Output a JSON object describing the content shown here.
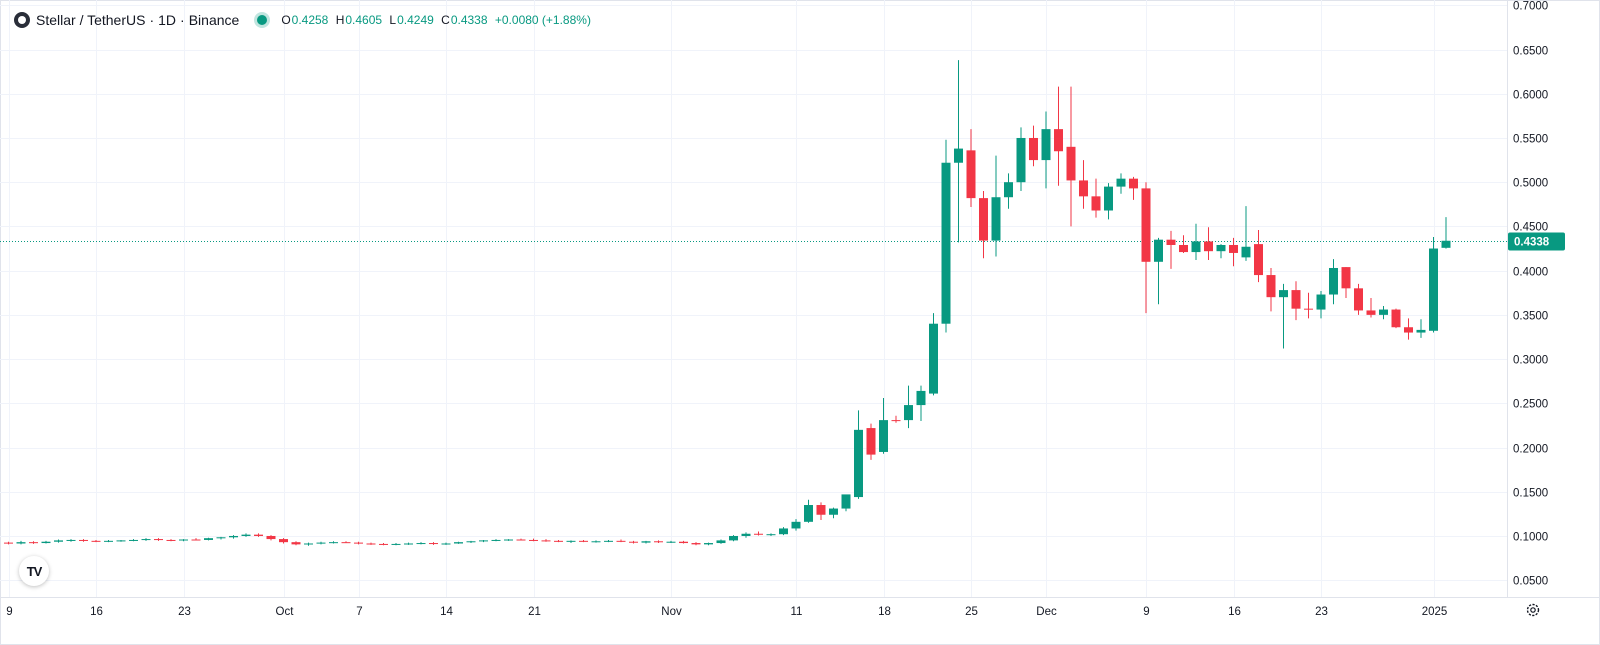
{
  "header": {
    "symbol": "Stellar / TetherUS",
    "interval": "1D",
    "exchange": "Binance",
    "ohlc": {
      "open": "0.4258",
      "high": "0.4605",
      "low": "0.4249",
      "close": "0.4338",
      "change": "+0.0080 (+1.88%)"
    }
  },
  "price_label": "0.4338",
  "colors": {
    "up": "#089981",
    "down": "#f23645",
    "grid": "#f0f3fa",
    "axis_text": "#131722"
  },
  "icons": {
    "logo": "tradingview-logo-icon",
    "settings": "gear-icon",
    "symbol": "symbol-icon"
  },
  "chart_data": {
    "type": "candlestick",
    "title": "Stellar / TetherUS · 1D · Binance",
    "y_ticks": [
      "0.7000",
      "0.6500",
      "0.6000",
      "0.5500",
      "0.5000",
      "0.4500",
      "0.4000",
      "0.3500",
      "0.3000",
      "0.2500",
      "0.2000",
      "0.1500",
      "0.1000",
      "0.0500"
    ],
    "ylim": [
      0.031,
      0.706
    ],
    "x_ticks": [
      {
        "label": "9",
        "i": 0
      },
      {
        "label": "16",
        "i": 7
      },
      {
        "label": "23",
        "i": 14
      },
      {
        "label": "Oct",
        "i": 22
      },
      {
        "label": "7",
        "i": 28
      },
      {
        "label": "14",
        "i": 35
      },
      {
        "label": "21",
        "i": 42
      },
      {
        "label": "Nov",
        "i": 53
      },
      {
        "label": "11",
        "i": 63
      },
      {
        "label": "18",
        "i": 70
      },
      {
        "label": "25",
        "i": 77
      },
      {
        "label": "Dec",
        "i": 83
      },
      {
        "label": "9",
        "i": 91
      },
      {
        "label": "16",
        "i": 98
      },
      {
        "label": "23",
        "i": 105
      },
      {
        "label": "2025",
        "i": 114
      }
    ],
    "grid": true,
    "last_price": 0.4338,
    "candles": [
      [
        0.0925,
        0.0935,
        0.0905,
        0.0915
      ],
      [
        0.0915,
        0.0945,
        0.0905,
        0.093
      ],
      [
        0.093,
        0.094,
        0.091,
        0.092
      ],
      [
        0.092,
        0.0945,
        0.0915,
        0.0935
      ],
      [
        0.0935,
        0.096,
        0.0925,
        0.095
      ],
      [
        0.095,
        0.0965,
        0.0935,
        0.0955
      ],
      [
        0.0955,
        0.0965,
        0.0935,
        0.0945
      ],
      [
        0.0945,
        0.0955,
        0.093,
        0.094
      ],
      [
        0.094,
        0.0955,
        0.093,
        0.0945
      ],
      [
        0.0945,
        0.0955,
        0.0935,
        0.095
      ],
      [
        0.095,
        0.0965,
        0.094,
        0.0955
      ],
      [
        0.0955,
        0.0975,
        0.0945,
        0.0965
      ],
      [
        0.0965,
        0.0975,
        0.0945,
        0.0955
      ],
      [
        0.0955,
        0.0965,
        0.094,
        0.095
      ],
      [
        0.095,
        0.0965,
        0.094,
        0.096
      ],
      [
        0.096,
        0.0975,
        0.095,
        0.0955
      ],
      [
        0.0955,
        0.098,
        0.095,
        0.0975
      ],
      [
        0.0975,
        0.099,
        0.096,
        0.0985
      ],
      [
        0.0985,
        0.101,
        0.097,
        0.1
      ],
      [
        0.1,
        0.103,
        0.099,
        0.1015
      ],
      [
        0.1015,
        0.103,
        0.099,
        0.1
      ],
      [
        0.1,
        0.101,
        0.095,
        0.0965
      ],
      [
        0.0965,
        0.0975,
        0.0915,
        0.093
      ],
      [
        0.093,
        0.094,
        0.0895,
        0.0905
      ],
      [
        0.0905,
        0.0925,
        0.089,
        0.0915
      ],
      [
        0.0915,
        0.0935,
        0.0905,
        0.0925
      ],
      [
        0.0925,
        0.094,
        0.0915,
        0.093
      ],
      [
        0.093,
        0.094,
        0.092,
        0.0925
      ],
      [
        0.0925,
        0.0935,
        0.0905,
        0.0915
      ],
      [
        0.0915,
        0.0925,
        0.09,
        0.091
      ],
      [
        0.091,
        0.092,
        0.0895,
        0.0905
      ],
      [
        0.0905,
        0.092,
        0.0895,
        0.091
      ],
      [
        0.091,
        0.0925,
        0.09,
        0.0915
      ],
      [
        0.0915,
        0.093,
        0.0905,
        0.092
      ],
      [
        0.092,
        0.093,
        0.09,
        0.091
      ],
      [
        0.091,
        0.0925,
        0.09,
        0.0915
      ],
      [
        0.0915,
        0.0935,
        0.091,
        0.093
      ],
      [
        0.093,
        0.0945,
        0.092,
        0.094
      ],
      [
        0.094,
        0.0955,
        0.093,
        0.095
      ],
      [
        0.095,
        0.0965,
        0.094,
        0.0955
      ],
      [
        0.0955,
        0.0965,
        0.0945,
        0.096
      ],
      [
        0.096,
        0.097,
        0.095,
        0.0955
      ],
      [
        0.0955,
        0.097,
        0.094,
        0.095
      ],
      [
        0.095,
        0.0965,
        0.0935,
        0.0945
      ],
      [
        0.0945,
        0.0955,
        0.093,
        0.0935
      ],
      [
        0.0935,
        0.095,
        0.092,
        0.0945
      ],
      [
        0.0945,
        0.0955,
        0.093,
        0.0935
      ],
      [
        0.0935,
        0.095,
        0.0925,
        0.094
      ],
      [
        0.094,
        0.0955,
        0.093,
        0.0945
      ],
      [
        0.0945,
        0.096,
        0.093,
        0.0935
      ],
      [
        0.0935,
        0.0945,
        0.0915,
        0.0925
      ],
      [
        0.0925,
        0.0945,
        0.0915,
        0.094
      ],
      [
        0.094,
        0.095,
        0.092,
        0.093
      ],
      [
        0.093,
        0.0945,
        0.092,
        0.0935
      ],
      [
        0.0935,
        0.0945,
        0.0915,
        0.092
      ],
      [
        0.092,
        0.093,
        0.0895,
        0.0905
      ],
      [
        0.0905,
        0.0925,
        0.0895,
        0.092
      ],
      [
        0.092,
        0.096,
        0.091,
        0.095
      ],
      [
        0.095,
        0.101,
        0.094,
        0.1
      ],
      [
        0.1,
        0.104,
        0.098,
        0.1025
      ],
      [
        0.1025,
        0.105,
        0.1005,
        0.1015
      ],
      [
        0.1015,
        0.103,
        0.1,
        0.102
      ],
      [
        0.102,
        0.11,
        0.101,
        0.1085
      ],
      [
        0.1085,
        0.119,
        0.106,
        0.116
      ],
      [
        0.116,
        0.141,
        0.115,
        0.135
      ],
      [
        0.135,
        0.138,
        0.118,
        0.124
      ],
      [
        0.124,
        0.132,
        0.12,
        0.131
      ],
      [
        0.131,
        0.146,
        0.128,
        0.147
      ],
      [
        0.144,
        0.242,
        0.142,
        0.22
      ],
      [
        0.222,
        0.227,
        0.186,
        0.192
      ],
      [
        0.195,
        0.256,
        0.193,
        0.231
      ],
      [
        0.231,
        0.236,
        0.228,
        0.23
      ],
      [
        0.231,
        0.27,
        0.222,
        0.248
      ],
      [
        0.248,
        0.27,
        0.23,
        0.264
      ],
      [
        0.261,
        0.352,
        0.259,
        0.34
      ],
      [
        0.34,
        0.548,
        0.33,
        0.522
      ],
      [
        0.522,
        0.638,
        0.432,
        0.538
      ],
      [
        0.536,
        0.56,
        0.472,
        0.482
      ],
      [
        0.482,
        0.49,
        0.414,
        0.434
      ],
      [
        0.434,
        0.53,
        0.416,
        0.483
      ],
      [
        0.483,
        0.51,
        0.47,
        0.5
      ],
      [
        0.5,
        0.562,
        0.49,
        0.55
      ],
      [
        0.55,
        0.564,
        0.518,
        0.525
      ],
      [
        0.525,
        0.58,
        0.493,
        0.56
      ],
      [
        0.56,
        0.608,
        0.496,
        0.535
      ],
      [
        0.54,
        0.608,
        0.45,
        0.502
      ],
      [
        0.502,
        0.525,
        0.47,
        0.484
      ],
      [
        0.484,
        0.504,
        0.46,
        0.468
      ],
      [
        0.468,
        0.499,
        0.458,
        0.495
      ],
      [
        0.495,
        0.51,
        0.487,
        0.504
      ],
      [
        0.504,
        0.506,
        0.48,
        0.493
      ],
      [
        0.493,
        0.5,
        0.352,
        0.41
      ],
      [
        0.41,
        0.437,
        0.362,
        0.435
      ],
      [
        0.435,
        0.445,
        0.402,
        0.429
      ],
      [
        0.429,
        0.44,
        0.42,
        0.421
      ],
      [
        0.421,
        0.453,
        0.412,
        0.433
      ],
      [
        0.433,
        0.449,
        0.412,
        0.422
      ],
      [
        0.422,
        0.43,
        0.414,
        0.429
      ],
      [
        0.429,
        0.437,
        0.405,
        0.42
      ],
      [
        0.415,
        0.473,
        0.411,
        0.427
      ],
      [
        0.43,
        0.446,
        0.387,
        0.395
      ],
      [
        0.395,
        0.403,
        0.354,
        0.37
      ],
      [
        0.37,
        0.385,
        0.312,
        0.378
      ],
      [
        0.378,
        0.388,
        0.344,
        0.357
      ],
      [
        0.357,
        0.375,
        0.346,
        0.356
      ],
      [
        0.356,
        0.377,
        0.346,
        0.373
      ],
      [
        0.373,
        0.413,
        0.362,
        0.403
      ],
      [
        0.404,
        0.404,
        0.369,
        0.38
      ],
      [
        0.38,
        0.385,
        0.35,
        0.355
      ],
      [
        0.355,
        0.369,
        0.347,
        0.35
      ],
      [
        0.35,
        0.36,
        0.345,
        0.356
      ],
      [
        0.356,
        0.357,
        0.335,
        0.336
      ],
      [
        0.336,
        0.346,
        0.322,
        0.33
      ],
      [
        0.33,
        0.345,
        0.324,
        0.333
      ],
      [
        0.332,
        0.438,
        0.33,
        0.425
      ],
      [
        0.4258,
        0.4605,
        0.4249,
        0.4338
      ]
    ]
  }
}
